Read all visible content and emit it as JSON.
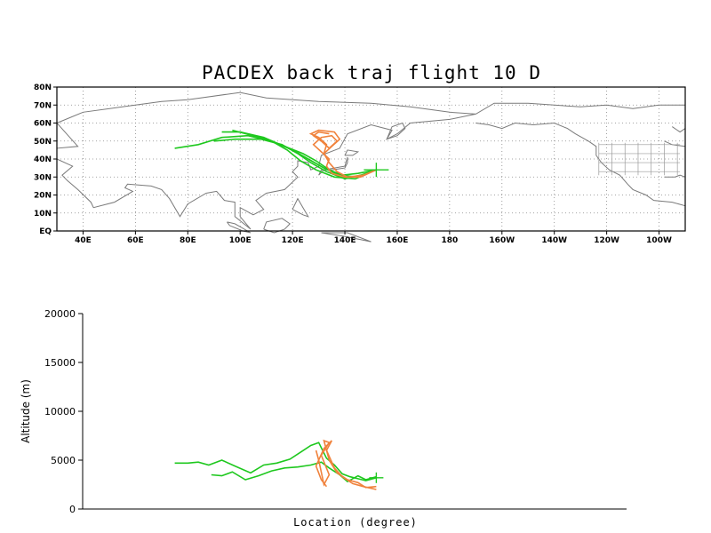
{
  "chart_data": [
    {
      "type": "line",
      "title": "PACDEX back traj flight 10 D",
      "xlabel": "",
      "ylabel": "",
      "x_ticks": [
        "40E",
        "60E",
        "80E",
        "100E",
        "120E",
        "140E",
        "160E",
        "180",
        "160W",
        "140W",
        "120W",
        "100W"
      ],
      "y_ticks": [
        "EQ",
        "10N",
        "20N",
        "30N",
        "40N",
        "50N",
        "60N",
        "70N",
        "80N"
      ],
      "xlim": [
        30,
        270
      ],
      "ylim": [
        0,
        80
      ],
      "grid": true,
      "projection": "cylindrical equidistant (longitude east, 0-360)",
      "colors": {
        "green": "#1ec81e",
        "orange": "#f0823c",
        "coast": "#7a7a7a"
      },
      "origin": {
        "lon": 152,
        "lat": 34
      },
      "series": [
        {
          "color": "green",
          "points": [
            [
              152,
              34
            ],
            [
              145,
              30
            ],
            [
              138,
              31
            ],
            [
              132,
              35
            ],
            [
              126,
              40
            ],
            [
              120,
              45
            ],
            [
              112,
              50
            ],
            [
              103,
              53
            ],
            [
              93,
              52
            ],
            [
              84,
              48
            ],
            [
              75,
              46
            ]
          ]
        },
        {
          "color": "green",
          "points": [
            [
              152,
              34
            ],
            [
              144,
              29
            ],
            [
              136,
              30
            ],
            [
              129,
              34
            ],
            [
              123,
              39
            ],
            [
              118,
              45
            ],
            [
              112,
              50
            ],
            [
              105,
              53
            ],
            [
              97,
              56
            ]
          ]
        },
        {
          "color": "green",
          "points": [
            [
              152,
              34
            ],
            [
              146,
              31
            ],
            [
              140,
              29
            ],
            [
              133,
              33
            ],
            [
              127,
              38
            ],
            [
              122,
              43
            ],
            [
              116,
              48
            ],
            [
              108,
              51
            ],
            [
              98,
              51
            ],
            [
              90,
              50
            ]
          ]
        },
        {
          "color": "green",
          "points": [
            [
              152,
              34
            ],
            [
              145,
              32
            ],
            [
              139,
              31
            ],
            [
              134,
              34
            ],
            [
              129,
              39
            ],
            [
              124,
              43
            ],
            [
              117,
              47
            ],
            [
              109,
              52
            ],
            [
              100,
              55
            ],
            [
              93,
              55
            ]
          ]
        },
        {
          "color": "orange",
          "points": [
            [
              152,
              34
            ],
            [
              146,
              30
            ],
            [
              140,
              30
            ],
            [
              135,
              32
            ],
            [
              133,
              36
            ],
            [
              134,
              40
            ],
            [
              131,
              44
            ],
            [
              128,
              48
            ],
            [
              131,
              52
            ],
            [
              135,
              53
            ],
            [
              137,
              50
            ],
            [
              134,
              46
            ],
            [
              131,
              50
            ],
            [
              128,
              53
            ],
            [
              130,
              55
            ],
            [
              134,
              54
            ]
          ]
        },
        {
          "color": "orange",
          "points": [
            [
              152,
              34
            ],
            [
              147,
              31
            ],
            [
              141,
              30
            ],
            [
              137,
              33
            ],
            [
              134,
              38
            ],
            [
              132,
              43
            ],
            [
              133,
              48
            ],
            [
              130,
              52
            ],
            [
              127,
              54
            ],
            [
              130,
              56
            ],
            [
              136,
              55
            ],
            [
              138,
              51
            ],
            [
              135,
              47
            ],
            [
              132,
              43
            ],
            [
              134,
              39
            ]
          ]
        }
      ]
    },
    {
      "type": "line",
      "title": "",
      "xlabel": "Location (degree)",
      "ylabel": "Altitude (m)",
      "y_ticks": [
        "0",
        "5000",
        "10000",
        "15000",
        "20000"
      ],
      "ylim": [
        0,
        20000
      ],
      "grid": false,
      "series": [
        {
          "color": "green",
          "points": [
            [
              152,
              3200
            ],
            [
              148,
              2900
            ],
            [
              145,
              3100
            ],
            [
              142,
              3300
            ],
            [
              139,
              3600
            ],
            [
              136,
              4500
            ],
            [
              133,
              5200
            ],
            [
              130,
              6800
            ],
            [
              127,
              6500
            ],
            [
              123,
              5800
            ],
            [
              119,
              5100
            ],
            [
              114,
              4700
            ],
            [
              109,
              4500
            ],
            [
              104,
              3700
            ],
            [
              98,
              4400
            ],
            [
              93,
              5000
            ],
            [
              88,
              4500
            ],
            [
              84,
              4800
            ],
            [
              80,
              4700
            ],
            [
              75,
              4700
            ]
          ]
        },
        {
          "color": "green",
          "points": [
            [
              152,
              3300
            ],
            [
              148,
              3000
            ],
            [
              145,
              3400
            ],
            [
              141,
              2800
            ],
            [
              138,
              3500
            ],
            [
              134,
              4200
            ],
            [
              131,
              4800
            ],
            [
              127,
              4500
            ],
            [
              122,
              4300
            ],
            [
              117,
              4200
            ],
            [
              112,
              3900
            ],
            [
              107,
              3400
            ],
            [
              102,
              3000
            ],
            [
              97,
              3800
            ],
            [
              93,
              3400
            ],
            [
              89,
              3500
            ]
          ]
        },
        {
          "color": "orange",
          "points": [
            [
              152,
              2300
            ],
            [
              148,
              2200
            ],
            [
              145,
              2700
            ],
            [
              141,
              3000
            ],
            [
              137,
              3700
            ],
            [
              134,
              5000
            ],
            [
              132,
              7000
            ],
            [
              134,
              6800
            ],
            [
              131,
              5500
            ],
            [
              134,
              3500
            ],
            [
              132,
              2500
            ],
            [
              130,
              5000
            ],
            [
              129,
              6000
            ]
          ]
        },
        {
          "color": "orange",
          "points": [
            [
              152,
              2000
            ],
            [
              147,
              2300
            ],
            [
              143,
              2600
            ],
            [
              139,
              3300
            ],
            [
              136,
              4200
            ],
            [
              133,
              6000
            ],
            [
              135,
              7000
            ],
            [
              132,
              6200
            ],
            [
              129,
              4400
            ],
            [
              131,
              3000
            ],
            [
              133,
              2300
            ]
          ]
        }
      ]
    }
  ]
}
